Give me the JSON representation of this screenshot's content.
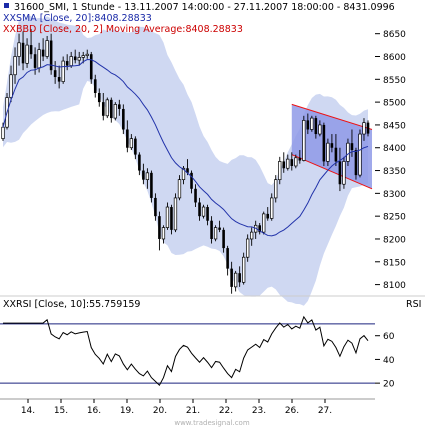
{
  "header": {
    "title_line": "31600_SMI, 1 Stunde - 13.11.2007 14:00:00 - 27.11.2007 18:00:00 - 8431.0996",
    "sma_line": "SMA [Close, 20]:8408.28833",
    "bbd_line": "BBD [Close, 20, 2] Moving Average:8408.28833",
    "rsi_line": "RSI [Close, 10]:55.759159",
    "rsi_axis_label": "RSI",
    "marker_xx": "XX"
  },
  "watermark": "www.tradesignal.com",
  "colors": {
    "background": "#ffffff",
    "candle": "#000000",
    "sma": "#2233aa",
    "band_fill": "#cfd8f2",
    "channel_fill": "#8f9ae8",
    "channel_line": "#ee1111",
    "rsi_line": "#000000",
    "rsi_levels": "#1a237e",
    "text_black": "#000000",
    "text_blue": "#1a2aa8",
    "text_red": "#cc0000"
  },
  "chart_data": [
    {
      "type": "candlestick",
      "title": "31600_SMI, 1 Stunde",
      "y_ticks": [
        8100,
        8150,
        8200,
        8250,
        8300,
        8350,
        8400,
        8450,
        8500,
        8550,
        8600,
        8650
      ],
      "ylim": [
        8075,
        8680
      ],
      "x_tick_labels": [
        "14.",
        "15.",
        "16.",
        "19.",
        "20.",
        "21.",
        "22.",
        "23.",
        "26.",
        "27."
      ],
      "candles": [
        {
          "o": 8420,
          "h": 8455,
          "l": 8415,
          "c": 8445
        },
        {
          "o": 8445,
          "h": 8520,
          "l": 8440,
          "c": 8510
        },
        {
          "o": 8510,
          "h": 8580,
          "l": 8500,
          "c": 8560
        },
        {
          "o": 8560,
          "h": 8620,
          "l": 8540,
          "c": 8600
        },
        {
          "o": 8600,
          "h": 8650,
          "l": 8580,
          "c": 8630
        },
        {
          "o": 8630,
          "h": 8655,
          "l": 8570,
          "c": 8585
        },
        {
          "o": 8585,
          "h": 8640,
          "l": 8575,
          "c": 8625
        },
        {
          "o": 8625,
          "h": 8660,
          "l": 8595,
          "c": 8605
        },
        {
          "o": 8605,
          "h": 8620,
          "l": 8560,
          "c": 8575
        },
        {
          "o": 8575,
          "h": 8630,
          "l": 8565,
          "c": 8615
        },
        {
          "o": 8615,
          "h": 8640,
          "l": 8590,
          "c": 8600
        },
        {
          "o": 8600,
          "h": 8645,
          "l": 8595,
          "c": 8635
        },
        {
          "o": 8635,
          "h": 8650,
          "l": 8560,
          "c": 8570
        },
        {
          "o": 8570,
          "h": 8590,
          "l": 8540,
          "c": 8555
        },
        {
          "o": 8555,
          "h": 8580,
          "l": 8530,
          "c": 8545
        },
        {
          "o": 8545,
          "h": 8600,
          "l": 8540,
          "c": 8590
        },
        {
          "o": 8590,
          "h": 8605,
          "l": 8570,
          "c": 8580
        },
        {
          "o": 8580,
          "h": 8610,
          "l": 8575,
          "c": 8600
        },
        {
          "o": 8600,
          "h": 8615,
          "l": 8585,
          "c": 8592
        },
        {
          "o": 8592,
          "h": 8610,
          "l": 8580,
          "c": 8598
        },
        {
          "o": 8598,
          "h": 8610,
          "l": 8585,
          "c": 8602
        },
        {
          "o": 8602,
          "h": 8615,
          "l": 8595,
          "c": 8605
        },
        {
          "o": 8605,
          "h": 8610,
          "l": 8540,
          "c": 8550
        },
        {
          "o": 8550,
          "h": 8560,
          "l": 8510,
          "c": 8520
        },
        {
          "o": 8520,
          "h": 8530,
          "l": 8490,
          "c": 8500
        },
        {
          "o": 8500,
          "h": 8520,
          "l": 8460,
          "c": 8470
        },
        {
          "o": 8470,
          "h": 8510,
          "l": 8465,
          "c": 8505
        },
        {
          "o": 8505,
          "h": 8510,
          "l": 8455,
          "c": 8465
        },
        {
          "o": 8465,
          "h": 8500,
          "l": 8460,
          "c": 8495
        },
        {
          "o": 8495,
          "h": 8505,
          "l": 8470,
          "c": 8485
        },
        {
          "o": 8485,
          "h": 8495,
          "l": 8430,
          "c": 8440
        },
        {
          "o": 8440,
          "h": 8460,
          "l": 8390,
          "c": 8400
        },
        {
          "o": 8400,
          "h": 8430,
          "l": 8395,
          "c": 8420
        },
        {
          "o": 8420,
          "h": 8425,
          "l": 8375,
          "c": 8385
        },
        {
          "o": 8385,
          "h": 8390,
          "l": 8340,
          "c": 8350
        },
        {
          "o": 8350,
          "h": 8365,
          "l": 8320,
          "c": 8330
        },
        {
          "o": 8330,
          "h": 8355,
          "l": 8310,
          "c": 8345
        },
        {
          "o": 8345,
          "h": 8350,
          "l": 8280,
          "c": 8290
        },
        {
          "o": 8290,
          "h": 8300,
          "l": 8240,
          "c": 8250
        },
        {
          "o": 8250,
          "h": 8260,
          "l": 8175,
          "c": 8200
        },
        {
          "o": 8200,
          "h": 8230,
          "l": 8190,
          "c": 8225
        },
        {
          "o": 8225,
          "h": 8280,
          "l": 8220,
          "c": 8270
        },
        {
          "o": 8270,
          "h": 8275,
          "l": 8210,
          "c": 8220
        },
        {
          "o": 8220,
          "h": 8300,
          "l": 8215,
          "c": 8290
        },
        {
          "o": 8290,
          "h": 8340,
          "l": 8285,
          "c": 8330
        },
        {
          "o": 8330,
          "h": 8360,
          "l": 8320,
          "c": 8355
        },
        {
          "o": 8355,
          "h": 8375,
          "l": 8340,
          "c": 8345
        },
        {
          "o": 8345,
          "h": 8350,
          "l": 8300,
          "c": 8310
        },
        {
          "o": 8310,
          "h": 8320,
          "l": 8270,
          "c": 8280
        },
        {
          "o": 8280,
          "h": 8290,
          "l": 8240,
          "c": 8250
        },
        {
          "o": 8250,
          "h": 8275,
          "l": 8245,
          "c": 8270
        },
        {
          "o": 8270,
          "h": 8275,
          "l": 8230,
          "c": 8240
        },
        {
          "o": 8240,
          "h": 8250,
          "l": 8190,
          "c": 8200
        },
        {
          "o": 8200,
          "h": 8230,
          "l": 8195,
          "c": 8225
        },
        {
          "o": 8225,
          "h": 8240,
          "l": 8215,
          "c": 8220
        },
        {
          "o": 8220,
          "h": 8225,
          "l": 8170,
          "c": 8180
        },
        {
          "o": 8180,
          "h": 8185,
          "l": 8120,
          "c": 8135
        },
        {
          "o": 8135,
          "h": 8150,
          "l": 8080,
          "c": 8095
        },
        {
          "o": 8095,
          "h": 8130,
          "l": 8085,
          "c": 8125
        },
        {
          "o": 8125,
          "h": 8140,
          "l": 8095,
          "c": 8105
        },
        {
          "o": 8105,
          "h": 8170,
          "l": 8100,
          "c": 8160
        },
        {
          "o": 8160,
          "h": 8210,
          "l": 8150,
          "c": 8200
        },
        {
          "o": 8200,
          "h": 8225,
          "l": 8185,
          "c": 8215
        },
        {
          "o": 8215,
          "h": 8240,
          "l": 8200,
          "c": 8230
        },
        {
          "o": 8230,
          "h": 8235,
          "l": 8210,
          "c": 8215
        },
        {
          "o": 8215,
          "h": 8260,
          "l": 8210,
          "c": 8255
        },
        {
          "o": 8255,
          "h": 8270,
          "l": 8240,
          "c": 8245
        },
        {
          "o": 8245,
          "h": 8300,
          "l": 8240,
          "c": 8290
        },
        {
          "o": 8290,
          "h": 8340,
          "l": 8280,
          "c": 8330
        },
        {
          "o": 8330,
          "h": 8380,
          "l": 8320,
          "c": 8370
        },
        {
          "o": 8370,
          "h": 8390,
          "l": 8345,
          "c": 8355
        },
        {
          "o": 8355,
          "h": 8385,
          "l": 8350,
          "c": 8375
        },
        {
          "o": 8375,
          "h": 8390,
          "l": 8350,
          "c": 8360
        },
        {
          "o": 8360,
          "h": 8385,
          "l": 8355,
          "c": 8378
        },
        {
          "o": 8378,
          "h": 8395,
          "l": 8365,
          "c": 8372
        },
        {
          "o": 8372,
          "h": 8470,
          "l": 8370,
          "c": 8460
        },
        {
          "o": 8460,
          "h": 8475,
          "l": 8430,
          "c": 8440
        },
        {
          "o": 8440,
          "h": 8470,
          "l": 8435,
          "c": 8465
        },
        {
          "o": 8465,
          "h": 8470,
          "l": 8420,
          "c": 8430
        },
        {
          "o": 8430,
          "h": 8460,
          "l": 8425,
          "c": 8450
        },
        {
          "o": 8450,
          "h": 8455,
          "l": 8360,
          "c": 8370
        },
        {
          "o": 8370,
          "h": 8420,
          "l": 8360,
          "c": 8410
        },
        {
          "o": 8410,
          "h": 8430,
          "l": 8390,
          "c": 8400
        },
        {
          "o": 8400,
          "h": 8430,
          "l": 8360,
          "c": 8370
        },
        {
          "o": 8370,
          "h": 8400,
          "l": 8305,
          "c": 8320
        },
        {
          "o": 8320,
          "h": 8380,
          "l": 8310,
          "c": 8370
        },
        {
          "o": 8370,
          "h": 8420,
          "l": 8360,
          "c": 8410
        },
        {
          "o": 8410,
          "h": 8440,
          "l": 8380,
          "c": 8395
        },
        {
          "o": 8395,
          "h": 8400,
          "l": 8330,
          "c": 8340
        },
        {
          "o": 8340,
          "h": 8440,
          "l": 8335,
          "c": 8430
        },
        {
          "o": 8430,
          "h": 8465,
          "l": 8415,
          "c": 8455
        },
        {
          "o": 8455,
          "h": 8460,
          "l": 8425,
          "c": 8431
        }
      ],
      "channel": {
        "upper": [
          {
            "x": 72,
            "y": 8495
          },
          {
            "x": 92,
            "y": 8440
          }
        ],
        "lower": [
          {
            "x": 72,
            "y": 8385
          },
          {
            "x": 92,
            "y": 8310
          }
        ]
      },
      "series": [
        {
          "name": "SMA [Close, 20]",
          "last_value": 8408.28833
        },
        {
          "name": "BBD [Close, 20, 2] Moving Average",
          "last_value": 8408.28833
        }
      ]
    },
    {
      "type": "line",
      "title": "RSI [Close, 10]",
      "last_value": 55.759159,
      "y_ticks": [
        20,
        40,
        60
      ],
      "ylim": [
        10,
        80
      ],
      "levels": [
        20,
        70
      ],
      "x_tick_labels": [
        "14.",
        "15.",
        "16.",
        "19.",
        "20.",
        "21.",
        "22.",
        "23.",
        "26.",
        "27."
      ]
    }
  ]
}
